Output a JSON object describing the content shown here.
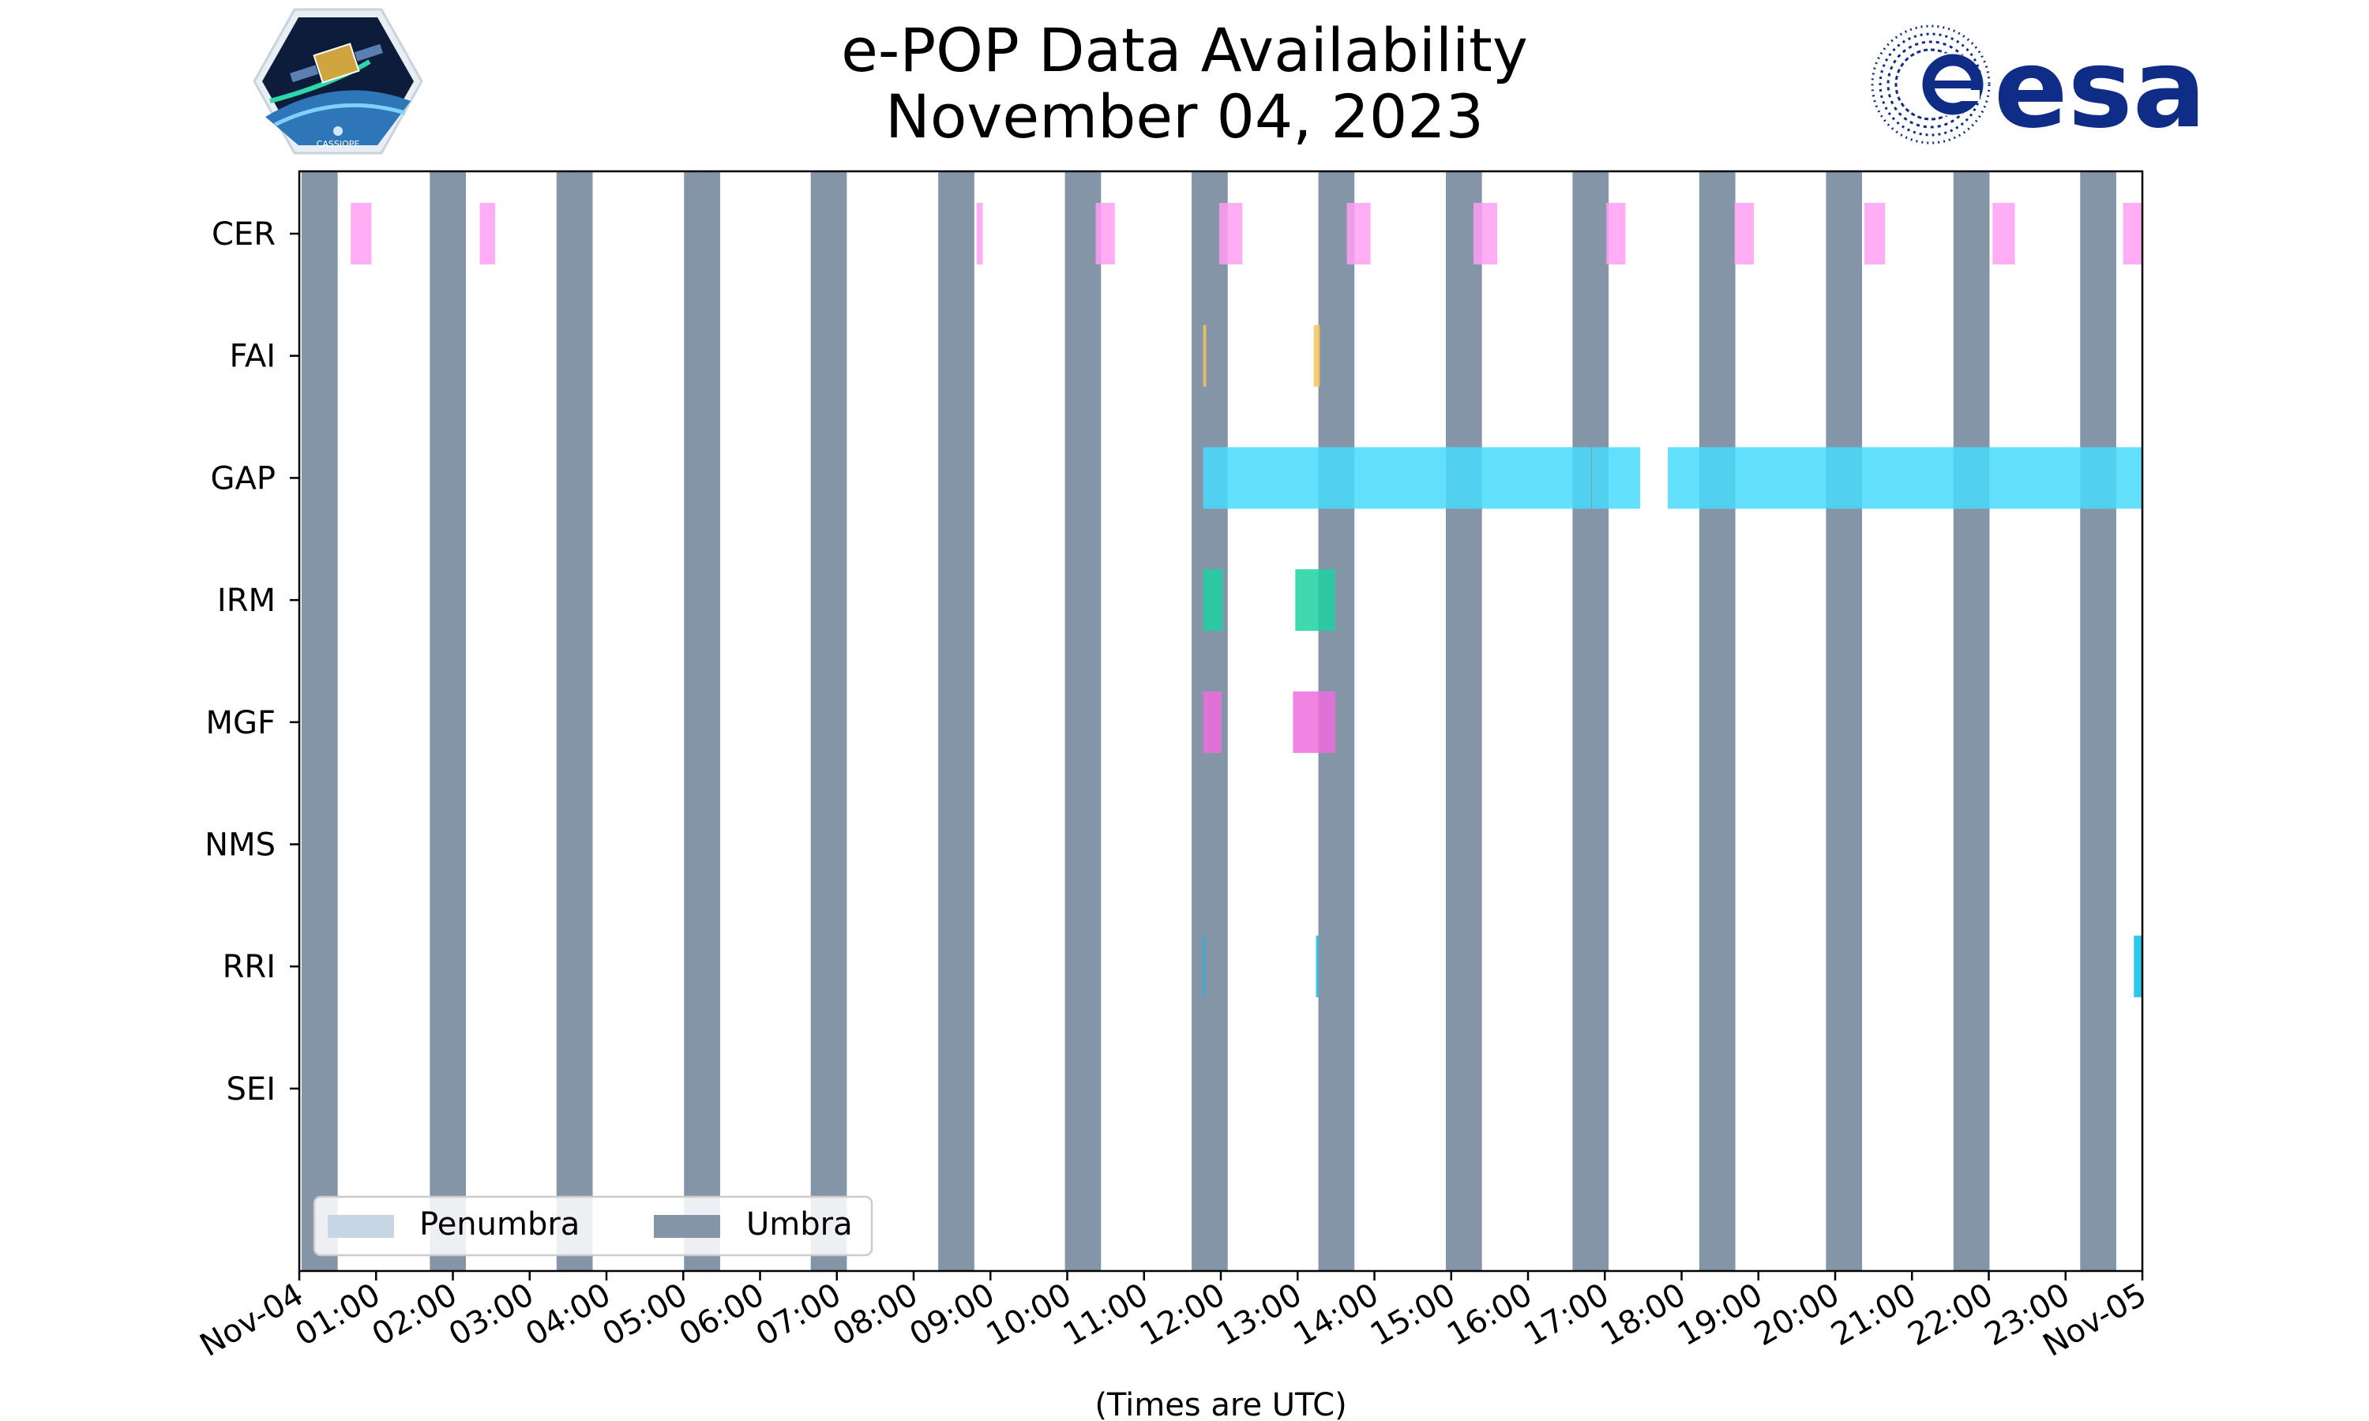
{
  "header": {
    "title_line1": "e-POP Data Availability",
    "title_line2": "November 04, 2023",
    "esa_logo_text": "esa",
    "mission_logo_text": "CASSIOPE"
  },
  "chart_data": {
    "type": "timeline",
    "x_unit": "hours UTC",
    "xlim": [
      0,
      24
    ],
    "xlabel": "(Times are UTC)",
    "x_tick_labels": [
      "Nov-04",
      "01:00",
      "02:00",
      "03:00",
      "04:00",
      "05:00",
      "06:00",
      "07:00",
      "08:00",
      "09:00",
      "10:00",
      "11:00",
      "12:00",
      "13:00",
      "14:00",
      "15:00",
      "16:00",
      "17:00",
      "18:00",
      "19:00",
      "20:00",
      "21:00",
      "22:00",
      "23:00",
      "Nov-05"
    ],
    "x_tick_values": [
      0,
      1,
      2,
      3,
      4,
      5,
      6,
      7,
      8,
      9,
      10,
      11,
      12,
      13,
      14,
      15,
      16,
      17,
      18,
      19,
      20,
      21,
      22,
      23,
      24
    ],
    "instruments": [
      "CER",
      "FAI",
      "GAP",
      "IRM",
      "MGF",
      "NMS",
      "RRI",
      "SEI"
    ],
    "umbra_color": "#8495a8",
    "penumbra_color": "#c8d5e5",
    "umbra_intervals": [
      [
        0.03,
        0.5
      ],
      [
        1.7,
        2.17
      ],
      [
        3.35,
        3.82
      ],
      [
        5.01,
        5.48
      ],
      [
        6.66,
        7.13
      ],
      [
        8.32,
        8.79
      ],
      [
        9.97,
        10.44
      ],
      [
        11.62,
        12.09
      ],
      [
        13.27,
        13.74
      ],
      [
        14.93,
        15.4
      ],
      [
        16.58,
        17.05
      ],
      [
        18.23,
        18.7
      ],
      [
        19.88,
        20.35
      ],
      [
        21.54,
        22.01
      ],
      [
        23.19,
        23.66
      ]
    ],
    "series": [
      {
        "name": "CER",
        "color": "#ff9ff3",
        "intervals": [
          [
            0.67,
            0.94
          ],
          [
            2.35,
            2.55
          ],
          [
            8.82,
            8.9
          ],
          [
            10.37,
            10.62
          ],
          [
            11.98,
            12.28
          ],
          [
            13.64,
            13.95
          ],
          [
            15.29,
            15.6
          ],
          [
            17.02,
            17.27
          ],
          [
            18.69,
            18.94
          ],
          [
            20.38,
            20.65
          ],
          [
            22.05,
            22.34
          ],
          [
            23.75,
            24.0
          ]
        ]
      },
      {
        "name": "FAI",
        "color": "#f8c35a",
        "intervals": [
          [
            11.77,
            11.81
          ],
          [
            13.21,
            13.29
          ]
        ]
      },
      {
        "name": "GAP",
        "color": "#48dbfb",
        "intervals": [
          [
            11.77,
            16.82
          ],
          [
            16.83,
            17.46
          ],
          [
            17.82,
            24.0
          ]
        ]
      },
      {
        "name": "IRM",
        "color": "#1dd1a1",
        "intervals": [
          [
            11.77,
            12.03
          ],
          [
            12.97,
            13.49
          ]
        ]
      },
      {
        "name": "MGF",
        "color": "#ee6ddd",
        "intervals": [
          [
            11.77,
            12.01
          ],
          [
            12.94,
            13.49
          ]
        ]
      },
      {
        "name": "NMS",
        "color": "#54a0ff",
        "intervals": []
      },
      {
        "name": "RRI",
        "color": "#0abde3",
        "intervals": [
          [
            11.77,
            11.79
          ],
          [
            13.24,
            13.27
          ],
          [
            23.89,
            24.0
          ]
        ]
      },
      {
        "name": "SEI",
        "color": "#5f27cd",
        "intervals": []
      }
    ],
    "legend": {
      "position": "lower-left",
      "entries": [
        {
          "label": "Penumbra",
          "color": "#c8d5e5"
        },
        {
          "label": "Umbra",
          "color": "#8495a8"
        }
      ]
    },
    "grid": false
  }
}
